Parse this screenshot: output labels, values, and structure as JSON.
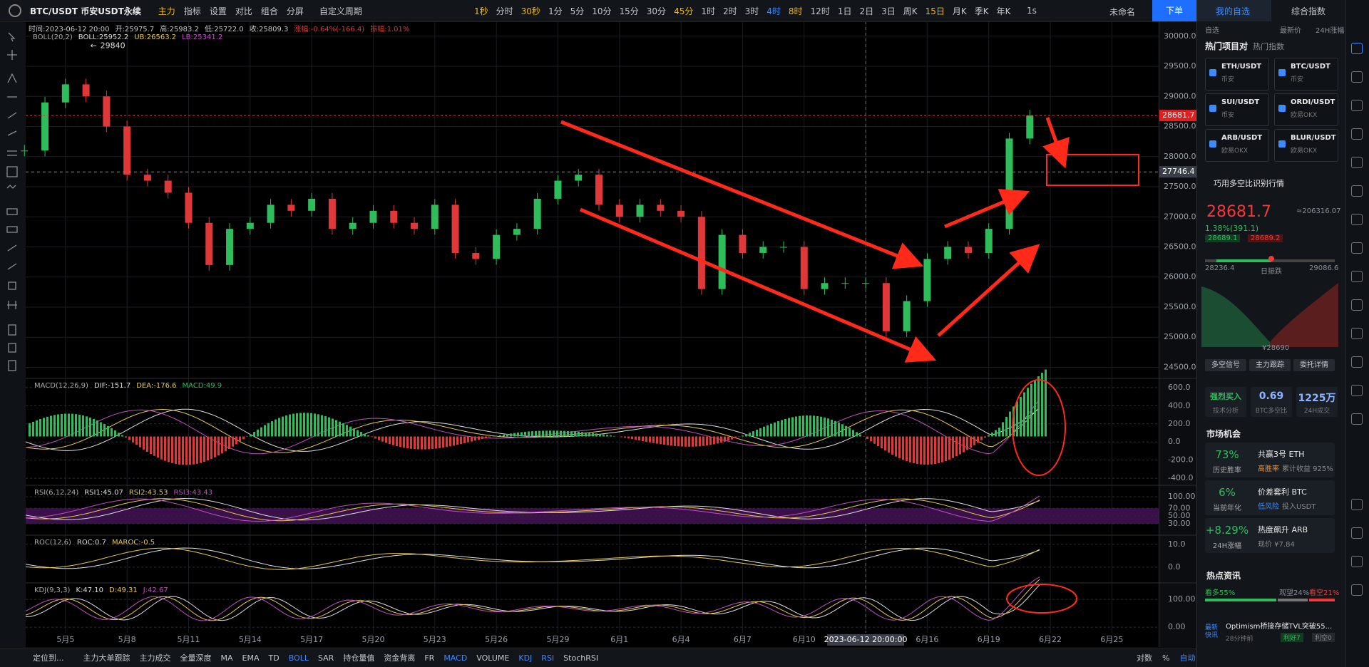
{
  "toolbar": {
    "symbol": "BTC/USDT 币安USDT永续",
    "menus": [
      "主力",
      "指标",
      "设置",
      "对比",
      "组合",
      "分屏"
    ],
    "custom_period": "自定义周期",
    "intervals": [
      "1秒",
      "分时",
      "30秒",
      "1分",
      "5分",
      "10分",
      "15分",
      "30分",
      "45分",
      "1时",
      "2时",
      "3时",
      "4时",
      "8时",
      "12时",
      "1日",
      "2日",
      "3日",
      "周K",
      "15日",
      "月K",
      "季K",
      "年K"
    ],
    "active_interval": "4时",
    "starred_intervals": [
      "1秒",
      "30秒",
      "45分",
      "8时",
      "15日"
    ],
    "replay_speed": "1s",
    "layout_name": "未命名",
    "order_button": "下单"
  },
  "price_chart": {
    "ohlc_info": [
      "时间:2023-06-12 20:00",
      "开:25975.7",
      "高:25983.2",
      "低:25722.0",
      "收:25809.3",
      "涨幅:-0.64%(-166.4)",
      "振幅:1.01%"
    ],
    "boll_info": [
      "BOLL(20,2)",
      "BOLL:25952.2",
      "UB:26563.2",
      "LB:25341.2"
    ],
    "ylim": [
      24340,
      30246
    ],
    "yticks": [
      {
        "value": 30000,
        "label": "30000.0"
      },
      {
        "value": 29500,
        "label": "29500.0"
      },
      {
        "value": 29000,
        "label": "29000.0"
      },
      {
        "value": 28500,
        "label": "28500.0"
      },
      {
        "value": 28000,
        "label": "28000.0"
      },
      {
        "value": 27500,
        "label": "27500.0"
      },
      {
        "value": 27000,
        "label": "27000.0"
      },
      {
        "value": 26500,
        "label": "26500.0"
      },
      {
        "value": 26000,
        "label": "26000.0"
      },
      {
        "value": 25500,
        "label": "25500.0"
      },
      {
        "value": 25000,
        "label": "25000.0"
      },
      {
        "value": 24500,
        "label": "24500.0"
      }
    ],
    "close": [
      28100,
      28900,
      29200,
      29000,
      28500,
      27700,
      27600,
      27400,
      26900,
      26200,
      26800,
      26900,
      27200,
      27100,
      27300,
      26800,
      26900,
      27100,
      26900,
      26800,
      27200,
      26400,
      26300,
      26700,
      26800,
      27300,
      27600,
      27700,
      27200,
      27000,
      27200,
      27100,
      27000,
      25800,
      26700,
      26400,
      26500,
      26500,
      25800,
      25900,
      25900,
      25900,
      25100,
      25600,
      26300,
      26500,
      26400,
      26800,
      28300,
      28681.7
    ],
    "last_price": 28681.7,
    "crosshair_price": 27746.4,
    "high_marker": 29840,
    "dates": [
      "5月5",
      "5月8",
      "5月11",
      "5月14",
      "5月17",
      "5月20",
      "5月23",
      "5月26",
      "5月29",
      "6月1",
      "6月4",
      "6月7",
      "6月10",
      null,
      "6月16",
      "6月19",
      "6月22",
      "6月25"
    ],
    "hover_date": "2023-06-12 20:00:00"
  },
  "indicators": [
    {
      "legend": [
        "MACD(12,26,9)",
        "DIF:-151.7",
        "DEA:-176.6",
        "MACD:49.9"
      ],
      "ylim": [
        -470,
        686
      ],
      "yticks": [
        {
          "value": 600,
          "label": "600.0"
        },
        {
          "value": 400,
          "label": "400.0"
        },
        {
          "value": 200,
          "label": "200.0"
        },
        {
          "value": 0,
          "label": "0.0"
        },
        {
          "value": -200,
          "label": "-200.0"
        },
        {
          "value": -400,
          "label": "-400.0"
        }
      ]
    },
    {
      "legend": [
        "RSI(6,12,24)",
        "RSI1:45.07",
        "RSI2:43.53",
        "RSI3:43.43"
      ],
      "ylim": [
        4,
        126
      ],
      "yticks": [
        {
          "value": 100,
          "label": "100.00"
        },
        {
          "value": 70,
          "label": "70.00"
        },
        {
          "value": 50,
          "label": "50.00"
        },
        {
          "value": 30,
          "label": "30.00"
        }
      ]
    },
    {
      "legend": [
        "ROC(12,6)",
        "ROC:0.7",
        "MAROC:-0.5"
      ],
      "ylim": [
        -6.6,
        13.4
      ],
      "yticks": [
        {
          "value": 10,
          "label": "10.0"
        },
        {
          "value": 0,
          "label": "0.0"
        }
      ]
    },
    {
      "legend": [
        "KDJ(9,3,3)",
        "K:47.10",
        "D:49.31",
        "J:42.67"
      ],
      "ylim": [
        -20,
        154
      ],
      "yticks": [
        {
          "value": 100,
          "label": "100.00"
        },
        {
          "value": 0,
          "label": "0.00"
        }
      ]
    }
  ],
  "bottom_bar": {
    "locate": "定位到...",
    "tools": [
      "主力大单跟踪",
      "主力成交",
      "全量深度",
      "MA",
      "EMA",
      "TD",
      "BOLL",
      "SAR",
      "持仓量值",
      "资金背离",
      "FR",
      "MACD",
      "VOLUME",
      "KDJ",
      "RSI",
      "StochRSI"
    ],
    "active_tools": [
      "BOLL",
      "MACD",
      "KDJ",
      "RSI"
    ],
    "right": [
      "对数",
      "%",
      "自动"
    ]
  },
  "right_panel": {
    "tabs": [
      "我的自选",
      "综合指数"
    ],
    "list_header": [
      "自选",
      "最新价",
      "24H涨幅"
    ],
    "hot_tabs": [
      "热门项目对",
      "热门指数"
    ],
    "pairs": [
      {
        "name": "ETH/USDT",
        "exchange": "币安"
      },
      {
        "name": "BTC/USDT",
        "exchange": "币安"
      },
      {
        "name": "SUI/USDT",
        "exchange": "币安"
      },
      {
        "name": "ORDI/USDT",
        "exchange": "欧易OKX"
      },
      {
        "name": "ARB/USDT",
        "exchange": "欧易OKX"
      },
      {
        "name": "BLUR/USDT",
        "exchange": "欧易OKX"
      }
    ],
    "banner": "巧用多空比识别行情",
    "ticker": {
      "price": 28681.7,
      "cny": "≈206316.07",
      "change": "1.38%(391.1)",
      "bid": 28689.1,
      "ask": 28689.2,
      "low": 28236.4,
      "range_label": "日振跌",
      "high": 29086.6,
      "depth_price": "¥28690"
    },
    "buttons": [
      "多空信号",
      "主力跟踪",
      "委托详情"
    ],
    "stats": [
      {
        "value": "强烈买入",
        "label": "技术分析"
      },
      {
        "value": 0.69,
        "label": "BTC多空比"
      },
      {
        "value": "1225万",
        "label": "24H成交"
      }
    ],
    "opportunity_title": "市场机会",
    "opportunities": [
      {
        "value": "73%",
        "value_label": "历史胜率",
        "title": "共赢3号 ETH",
        "tag": "高胜率",
        "detail": "累计收益 925%"
      },
      {
        "value": "6%",
        "value_label": "当前年化",
        "title": "价差套利 BTC",
        "tag": "低风险",
        "detail": "投入USDT"
      },
      {
        "value": "+8.29%",
        "value_label": "24H涨幅",
        "title": "热度飙升 ARB",
        "detail": "现价 ¥7.84"
      }
    ],
    "news_title": "热点资讯",
    "sentiment": [
      "看多55%",
      "观望24%",
      "看空21%"
    ],
    "news": {
      "tag": "最新快讯",
      "headline": "Optimism桥接存储TVL突破55...",
      "time": "28分钟前",
      "bull": "利好7",
      "bear": "利空0"
    }
  }
}
